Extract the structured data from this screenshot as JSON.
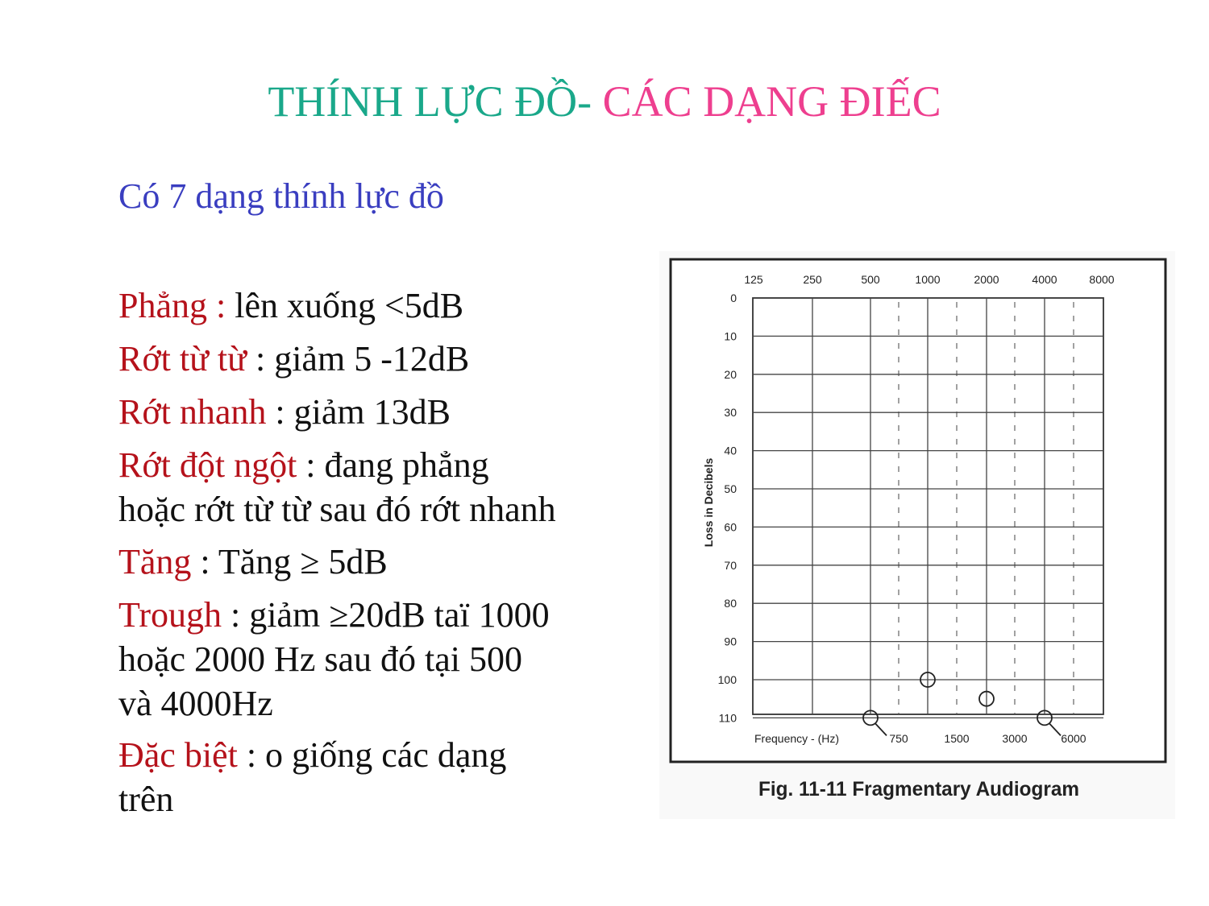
{
  "slide": {
    "title_part1": "THÍNH LỰC ĐỒ- ",
    "title_part2": "CÁC DẠNG ĐIẾC",
    "subtitle": "Có 7 dạng thính lực đồ"
  },
  "items": [
    {
      "term": "Phẳng :",
      "lines": [
        " lên xuống <5dB"
      ]
    },
    {
      "term": "Rớt từ từ",
      "lines": [
        " : giảm 5 -12dB"
      ]
    },
    {
      "term": "Rớt nhanh",
      "lines": [
        " : giảm 13dB"
      ]
    },
    {
      "term": "Rớt đột ngột",
      "lines": [
        " : đang phẳng",
        "hoặc rớt từ từ sau đó rớt nhanh"
      ]
    },
    {
      "term": "Tăng",
      "lines": [
        " : Tăng ≥ 5dB"
      ]
    },
    {
      "term": "Trough",
      "lines": [
        " : giảm ≥20dB taï 1000",
        "hoặc 2000 Hz sau đó tại 500",
        "và 4000Hz"
      ]
    },
    {
      "term": "Đặc biệt",
      "lines": [
        " : o giống các dạng",
        "trên"
      ]
    }
  ],
  "figure": {
    "caption": "Fig. 11-11 Fragmentary Audiogram",
    "ylabel": "Loss in Decibels",
    "xlabel_bottom": "Frequency - (Hz)",
    "top_freqs": [
      "125",
      "250",
      "500",
      "1000",
      "2000",
      "4000",
      "8000"
    ],
    "mid_freqs": [
      "750",
      "1500",
      "3000",
      "6000"
    ],
    "y_ticks": [
      "0",
      "10",
      "20",
      "30",
      "40",
      "50",
      "60",
      "70",
      "80",
      "90",
      "100",
      "110"
    ],
    "points": [
      {
        "freq": "500",
        "db": 110
      },
      {
        "freq": "1000",
        "db": 100
      },
      {
        "freq": "2000",
        "db": 105
      },
      {
        "freq": "4000",
        "db": 110
      }
    ]
  }
}
